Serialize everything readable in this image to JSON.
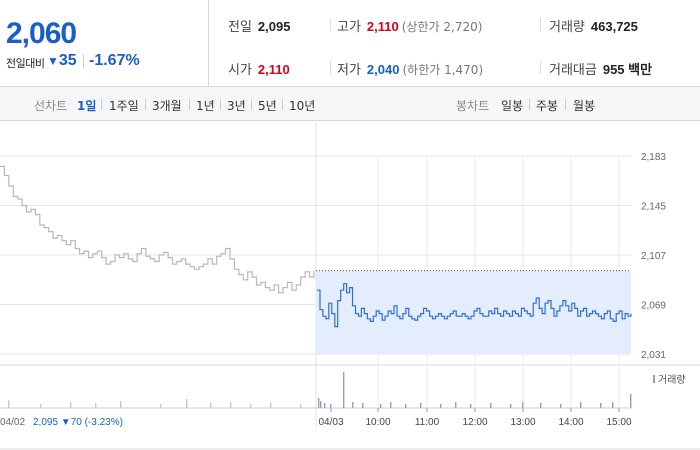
{
  "quote": {
    "current_price": "2,060",
    "change_label": "전일대비",
    "change_arrow": "▼",
    "change_amount": "35",
    "change_rate": "-1.67%"
  },
  "stats": {
    "prev_close_label": "전일",
    "prev_close": "2,095",
    "high_label": "고가",
    "high": "2,110",
    "upper_limit": "(상한가 2,720)",
    "volume_label": "거래량",
    "volume": "463,725",
    "open_label": "시가",
    "open": "2,110",
    "low_label": "저가",
    "low": "2,040",
    "lower_limit": "(하한가 1,470)",
    "trade_value_label": "거래대금",
    "trade_value": "955 백만"
  },
  "periods": {
    "line_title": "선차트",
    "line_items": [
      "1일",
      "1주일",
      "3개월",
      "1년",
      "3년",
      "5년",
      "10년"
    ],
    "active": "1일",
    "candle_title": "봉차트",
    "candle_items": [
      "일봉",
      "주봉",
      "월봉"
    ]
  },
  "chart_data": {
    "type": "line",
    "title": "",
    "y_ticks": [
      "2,183",
      "2,145",
      "2,107",
      "2,069",
      "2,031"
    ],
    "ylim": [
      2031,
      2183
    ],
    "x_ticks": [
      "04/03",
      "10:00",
      "11:00",
      "12:00",
      "13:00",
      "14:00",
      "15:00"
    ],
    "prev_day": "04/02",
    "prev_day_summary": "2,095 ▼70 (-3.23%)",
    "reference_price": 2095,
    "volume_legend": "거래량",
    "colors": {
      "today": "#2f6ed8",
      "previous": "#b8b8b8",
      "fill": "#e4edfb",
      "volume": "#c8c8c8",
      "volume_today": "#9e97c4"
    },
    "series": [
      {
        "values": [
          2175,
          2168,
          2160,
          2152,
          2150,
          2145,
          2140,
          2142,
          2138,
          2130,
          2128,
          2125,
          2120,
          2122,
          2118,
          2115,
          2118,
          2112,
          2108,
          2110,
          2105,
          2108,
          2110,
          2105,
          2100,
          2102,
          2107,
          2105,
          2108,
          2104,
          2102,
          2108,
          2112,
          2106,
          2104,
          2102,
          2107,
          2109,
          2105,
          2100,
          2102,
          2104,
          2100,
          2098,
          2096,
          2098,
          2100,
          2104,
          2100,
          2106,
          2108,
          2112,
          2104,
          2096,
          2092,
          2088,
          2094,
          2090,
          2084,
          2086,
          2082,
          2080,
          2084,
          2078,
          2082,
          2086,
          2080,
          2084,
          2090,
          2094,
          2090,
          2095
        ]
      },
      {
        "values": [
          2080,
          2065,
          2060,
          2058,
          2070,
          2062,
          2052,
          2072,
          2080,
          2085,
          2078,
          2082,
          2068,
          2062,
          2060,
          2066,
          2062,
          2058,
          2056,
          2060,
          2064,
          2062,
          2057,
          2060,
          2064,
          2062,
          2068,
          2060,
          2058,
          2062,
          2066,
          2060,
          2058,
          2057,
          2060,
          2062,
          2066,
          2064,
          2060,
          2058,
          2060,
          2062,
          2060,
          2058,
          2060,
          2062,
          2064,
          2060,
          2060,
          2062,
          2060,
          2058,
          2060,
          2064,
          2066,
          2062,
          2060,
          2060,
          2064,
          2062,
          2066,
          2062,
          2060,
          2064,
          2062,
          2060,
          2064,
          2062,
          2060,
          2066,
          2064,
          2062,
          2060,
          2070,
          2074,
          2066,
          2062,
          2070,
          2072,
          2066,
          2060,
          2064,
          2068,
          2072,
          2068,
          2064,
          2070,
          2066,
          2060,
          2064,
          2066,
          2060,
          2062,
          2064,
          2062,
          2060,
          2058,
          2062,
          2064,
          2058,
          2056,
          2062,
          2064,
          2058,
          2062,
          2060,
          2062
        ]
      }
    ]
  }
}
